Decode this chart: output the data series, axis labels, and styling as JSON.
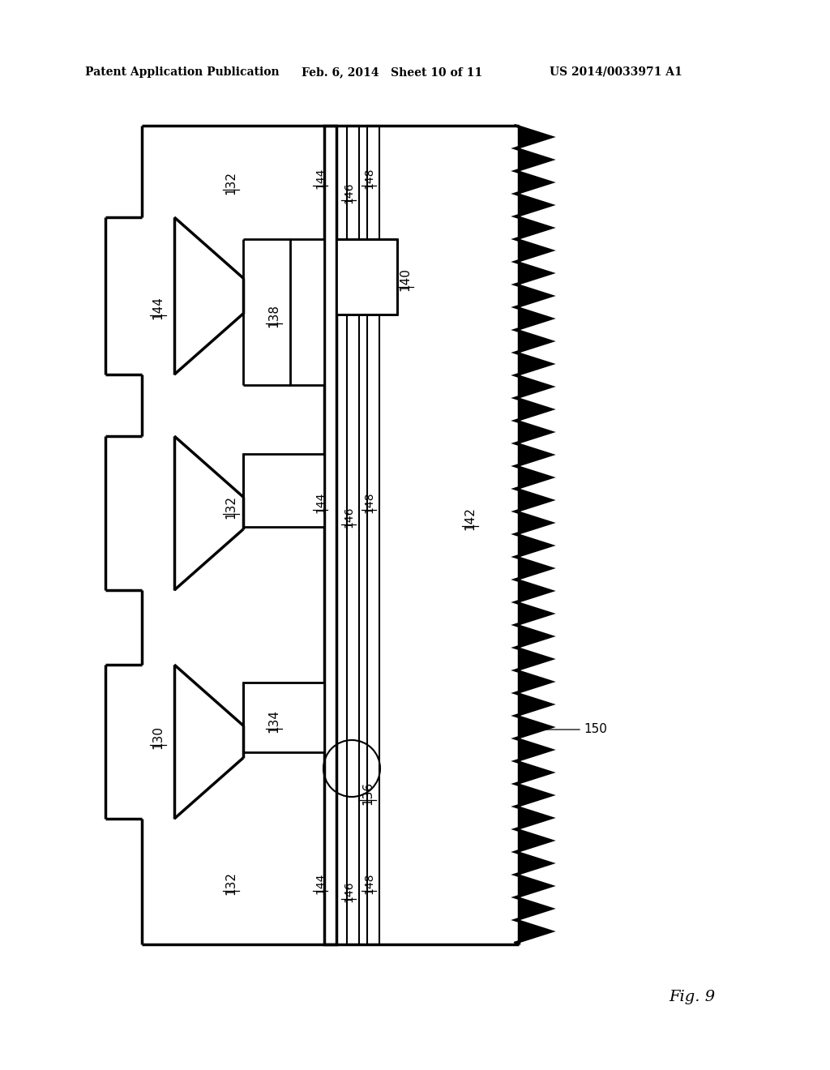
{
  "header_left": "Patent Application Publication",
  "header_mid": "Feb. 6, 2014   Sheet 10 of 11",
  "header_right": "US 2014/0033971 A1",
  "fig_label": "Fig. 9",
  "bg_color": "#ffffff",
  "line_color": "#000000",
  "lw_thick": 2.5,
  "lw_thin": 1.5,
  "lw_medium": 2.0
}
